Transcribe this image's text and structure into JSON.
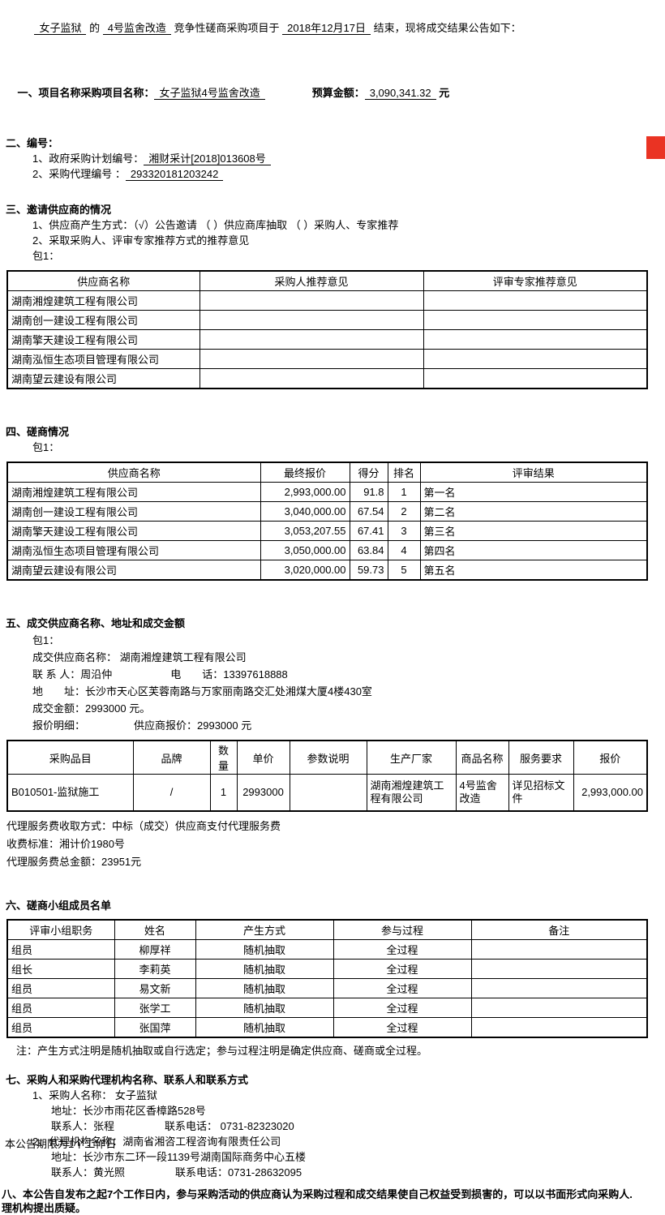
{
  "colors": {
    "marker_red": "#ea3323",
    "text": "#000000",
    "border": "#000000"
  },
  "intro": {
    "blank_buyer": "女子监狱",
    "mid1": " 的 ",
    "blank_project": "4号监舍改造",
    "mid2": " 竞争性磋商采购项目于 ",
    "blank_date": "2018年12月17日",
    "suffix": " 结束，现将成交结果公告如下："
  },
  "s1": {
    "label": "一、项目名称采购项目名称：",
    "project_name": "女子监狱4号监舍改造",
    "budget_label": "预算金额：",
    "budget_value": "3,090,341.32",
    "budget_unit": " 元"
  },
  "s2": {
    "title": "二、编号：",
    "item1_label": "1、政府采购计划编号：",
    "item1_value": "湘财采计[2018]013608号",
    "item2_label": "2、采购代理编号 ：",
    "item2_value": "293320181203242"
  },
  "s3": {
    "title": "三、邀请供应商的情况",
    "line1": "1、供应商产生方式：（√）公告邀请 （ ）供应商库抽取 （ ）采购人、专家推荐",
    "line2": "2、采取采购人、评审专家推荐方式的推荐意见",
    "pkg": "包1：",
    "table": {
      "headers": [
        "供应商名称",
        "采购人推荐意见",
        "评审专家推荐意见"
      ],
      "rows": [
        [
          "湖南湘煌建筑工程有限公司",
          "",
          ""
        ],
        [
          "湖南创一建设工程有限公司",
          "",
          ""
        ],
        [
          "湖南擎天建设工程有限公司",
          "",
          ""
        ],
        [
          "湖南泓恒生态项目管理有限公司",
          "",
          ""
        ],
        [
          "湖南望云建设有限公司",
          "",
          ""
        ]
      ]
    }
  },
  "s4": {
    "title": "四、磋商情况",
    "pkg": "包1：",
    "table": {
      "headers": [
        "供应商名称",
        "最终报价",
        "得分",
        "排名",
        "评审结果"
      ],
      "rows": [
        [
          "湖南湘煌建筑工程有限公司",
          "2,993,000.00",
          "91.8",
          "1",
          "第一名"
        ],
        [
          "湖南创一建设工程有限公司",
          "3,040,000.00",
          "67.54",
          "2",
          "第二名"
        ],
        [
          "湖南擎天建设工程有限公司",
          "3,053,207.55",
          "67.41",
          "3",
          "第三名"
        ],
        [
          "湖南泓恒生态项目管理有限公司",
          "3,050,000.00",
          "63.84",
          "4",
          "第四名"
        ],
        [
          "湖南望云建设有限公司",
          "3,020,000.00",
          "59.73",
          "5",
          "第五名"
        ]
      ]
    }
  },
  "s5": {
    "title": "五、成交供应商名称、地址和成交金额",
    "pkg": "包1：",
    "supplier_line": "成交供应商名称： 湖南湘煌建筑工程有限公司",
    "contact_label_value": "联 系 人：周沿仲",
    "phone_label_value": "电　　话：13397618888",
    "address_line": "地　　址：长沙市天心区芙蓉南路与万家丽南路交汇处湘煤大厦4楼430室",
    "amount_line": "成交金额：2993000 元。",
    "quote_detail_label": "报价明细：",
    "quote_detail_value": "供应商报价：2993000 元",
    "table": {
      "headers": [
        "采购品目",
        "品牌",
        "数量",
        "单价",
        "参数说明",
        "生产厂家",
        "商品名称",
        "服务要求",
        "报价"
      ],
      "rows": [
        [
          "B010501-监狱施工",
          "/",
          "1",
          "2993000",
          "",
          "湖南湘煌建筑工程有限公司",
          "4号监舍改造",
          "详见招标文件",
          "2,993,000.00"
        ]
      ]
    },
    "fee_line1": "代理服务费收取方式：中标（成交）供应商支付代理服务费",
    "fee_line2": "收费标准：湘计价1980号",
    "fee_line3": "代理服务费总金额：23951元"
  },
  "s6": {
    "title": "六、磋商小组成员名单",
    "table": {
      "headers": [
        "评审小组职务",
        "姓名",
        "产生方式",
        "参与过程",
        "备注"
      ],
      "rows": [
        [
          "组员",
          "柳厚祥",
          "随机抽取",
          "全过程",
          ""
        ],
        [
          "组长",
          "李莉英",
          "随机抽取",
          "全过程",
          ""
        ],
        [
          "组员",
          "易文新",
          "随机抽取",
          "全过程",
          ""
        ],
        [
          "组员",
          "张学工",
          "随机抽取",
          "全过程",
          ""
        ],
        [
          "组员",
          "张国萍",
          "随机抽取",
          "全过程",
          ""
        ]
      ]
    },
    "note": "注：产生方式注明是随机抽取或自行选定；参与过程注明是确定供应商、磋商或全过程。"
  },
  "s7": {
    "title": "七、采购人和采购代理机构名称、联系人和联系方式",
    "buyer_name_line": "1、采购人名称： 女子监狱",
    "buyer_address_line": "地址：长沙市雨花区香樟路528号",
    "buyer_contact": "联系人：张程",
    "buyer_phone": "联系电话： 0731-82323020",
    "agency_name_line": "2、代理机构名称：湖南省湘咨工程咨询有限责任公司",
    "agency_address_line": "地址：长沙市东二环一段1139号湖南国际商务中心五楼",
    "agency_contact": "联系人：黄光照",
    "agency_phone": "联系电话：0731-28632095"
  },
  "s8": {
    "line1": "八、本公告自发布之起7个工作日内，参与采购活动的供应商认为采购过程和成交结果使自己权益受到损害的，可以以书面形式向采购人.",
    "line2": "理机构提出质疑。"
  },
  "footer": {
    "text": "本公告期限为1个工作日"
  }
}
